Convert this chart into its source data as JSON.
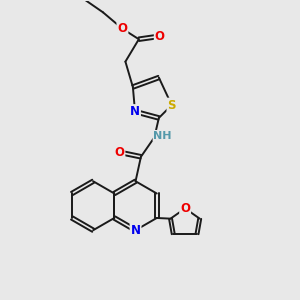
{
  "bg_color": "#e8e8e8",
  "bond_color": "#1a1a1a",
  "bond_width": 1.4,
  "atom_colors": {
    "N": "#0000ee",
    "O": "#ee0000",
    "S": "#ccaa00",
    "NH": "#5599aa",
    "C": "#1a1a1a"
  },
  "font_size": 8.5,
  "fig_width": 3.0,
  "fig_height": 3.0,
  "dpi": 100
}
